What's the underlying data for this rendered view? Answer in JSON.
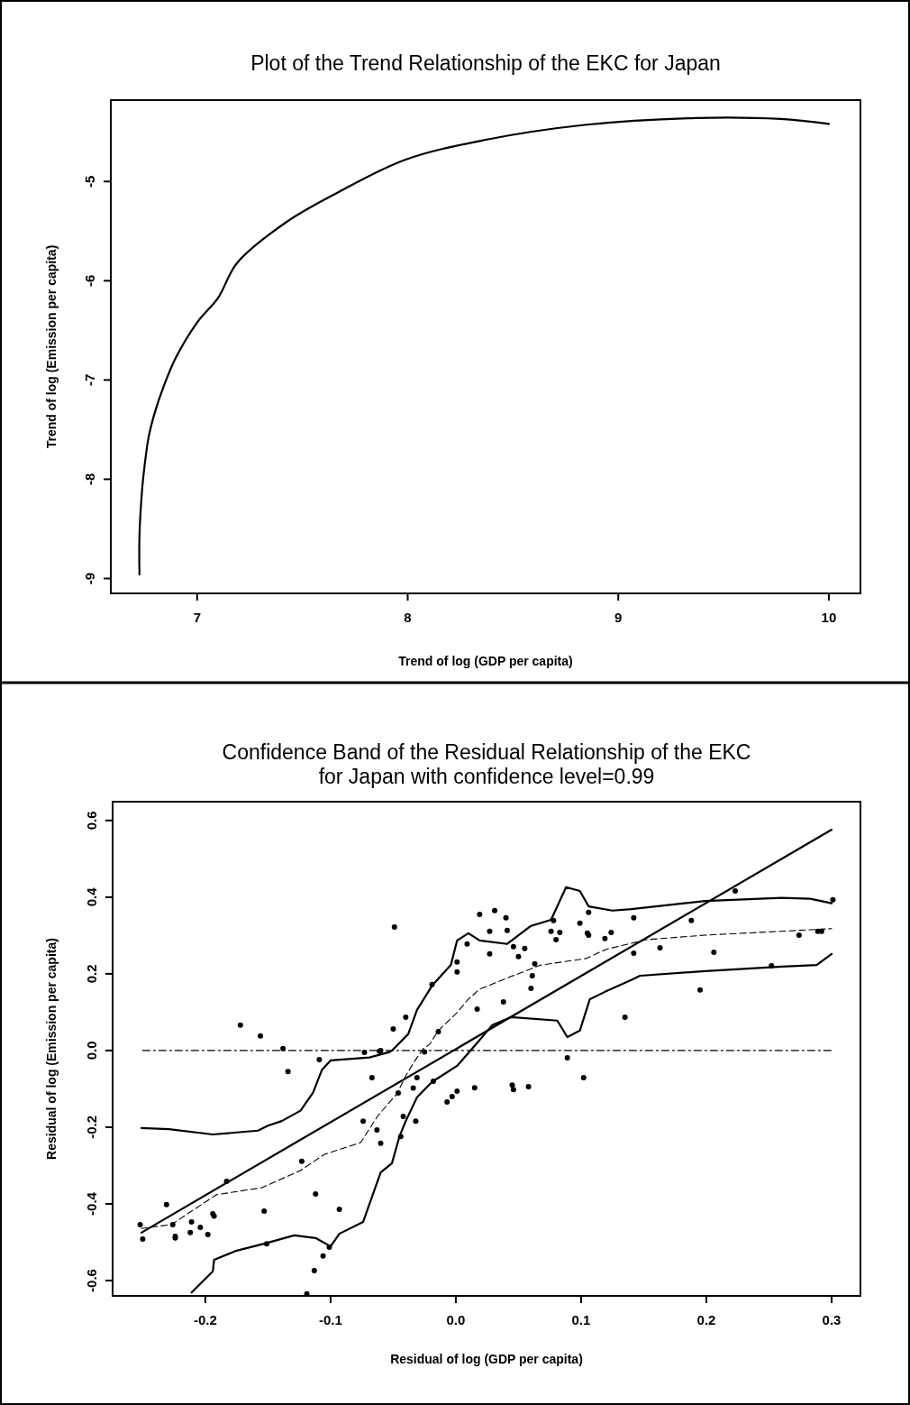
{
  "chart_data": [
    {
      "type": "line",
      "title": "Plot of the Trend Relationship of the EKC for Japan",
      "xlabel": "Trend of log (GDP per capita)",
      "ylabel": "Trend of log (Emission per capita)",
      "xlim": [
        6.59,
        10.15
      ],
      "ylim": [
        -9.15,
        -4.18
      ],
      "xticks": [
        7,
        8,
        9,
        10
      ],
      "yticks": [
        -9,
        -8,
        -7,
        -6,
        -5
      ],
      "series": [
        {
          "color": "#000000",
          "x": [
            6.726,
            6.726,
            6.74,
            6.75,
            6.77,
            6.8,
            6.84,
            6.9,
            7.0,
            7.1,
            7.19,
            7.43,
            7.66,
            7.99,
            8.37,
            8.84,
            9.37,
            9.77,
            10.0
          ],
          "values": [
            -8.96,
            -8.57,
            -8.07,
            -7.87,
            -7.57,
            -7.32,
            -7.07,
            -6.77,
            -6.42,
            -6.17,
            -5.82,
            -5.4,
            -5.12,
            -4.78,
            -4.58,
            -4.43,
            -4.36,
            -4.37,
            -4.42
          ]
        }
      ]
    },
    {
      "type": "scatter",
      "title": "Confidence Band of the Residual Relationship of the EKC for Japan with confidence level=0.99",
      "xlabel": "Residual of log (GDP per capita)",
      "ylabel": "Residual of log (Emission per capita)",
      "xlim": [
        -0.274,
        0.323
      ],
      "ylim": [
        -0.64,
        0.649
      ],
      "xticks": [
        {
          "value": -0.2,
          "label": "-0.2"
        },
        {
          "value": -0.1,
          "label": "-0.1"
        },
        {
          "value": 0,
          "label": "0.0"
        },
        {
          "value": 0.1,
          "label": "0.1"
        },
        {
          "value": 0.2,
          "label": "0.2"
        },
        {
          "value": 0.3,
          "label": "0.3"
        }
      ],
      "yticks": [
        {
          "value": -0.6,
          "label": "-0.6"
        },
        {
          "value": -0.4,
          "label": "-0.4"
        },
        {
          "value": -0.2,
          "label": "-0.2"
        },
        {
          "value": 0,
          "label": "0.0"
        },
        {
          "value": 0.2,
          "label": "0.2"
        },
        {
          "value": 0.4,
          "label": "0.4"
        },
        {
          "value": 0.6,
          "label": "0.6"
        }
      ],
      "series": [
        {
          "marker": "circle",
          "color": "#000000",
          "x": [
            -0.172,
            -0.156,
            -0.138,
            -0.049,
            -0.05,
            -0.04,
            -0.019,
            0.001,
            0.009,
            -0.014,
            0.001,
            -0.073,
            -0.061,
            -0.109,
            -0.134,
            -0.06,
            -0.025,
            -0.067,
            -0.031,
            -0.034,
            -0.018,
            -0.046,
            -0.007,
            -0.003,
            0.001,
            0.015,
            -0.074,
            -0.042,
            -0.032,
            -0.063,
            -0.06,
            -0.044,
            -0.123,
            -0.183,
            -0.112,
            -0.093,
            -0.153,
            -0.231,
            -0.194,
            -0.193,
            -0.252,
            -0.25,
            -0.226,
            -0.224,
            -0.224,
            -0.211,
            -0.204,
            -0.212,
            -0.198,
            -0.151,
            -0.101,
            -0.106,
            -0.113,
            -0.119,
            0.045,
            0.046,
            0.058,
            0.089,
            0.102,
            0.019,
            0.031,
            0.04,
            0.027,
            0.041,
            0.046,
            0.055,
            0.027,
            0.05,
            0.063,
            0.078,
            0.076,
            0.083,
            0.08,
            0.099,
            0.105,
            0.106,
            0.119,
            0.124,
            0.106,
            0.142,
            0.142,
            0.163,
            0.188,
            0.206,
            0.223,
            0.274,
            0.289,
            0.292,
            0.301,
            0.252,
            0.195,
            0.135,
            0.06,
            0.038,
            0.017,
            0.061
          ],
          "values": [
            0.066,
            0.038,
            0.005,
            0.322,
            0.056,
            0.087,
            0.172,
            0.205,
            0.278,
            0.049,
            0.231,
            -0.005,
            -0.002,
            -0.024,
            -0.055,
            0.0,
            -0.004,
            -0.071,
            -0.071,
            -0.098,
            -0.08,
            -0.111,
            -0.134,
            -0.12,
            -0.106,
            -0.097,
            -0.184,
            -0.172,
            -0.184,
            -0.207,
            -0.242,
            -0.224,
            -0.289,
            -0.341,
            -0.374,
            -0.414,
            -0.419,
            -0.402,
            -0.426,
            -0.432,
            -0.454,
            -0.492,
            -0.454,
            -0.485,
            -0.489,
            -0.447,
            -0.461,
            -0.475,
            -0.48,
            -0.504,
            -0.513,
            -0.536,
            -0.574,
            -0.635,
            -0.09,
            -0.102,
            -0.094,
            -0.019,
            -0.071,
            0.355,
            0.365,
            0.346,
            0.311,
            0.313,
            0.271,
            0.266,
            0.252,
            0.245,
            0.226,
            0.339,
            0.311,
            0.308,
            0.289,
            0.332,
            0.306,
            0.301,
            0.292,
            0.308,
            0.36,
            0.346,
            0.254,
            0.268,
            0.339,
            0.256,
            0.416,
            0.301,
            0.311,
            0.311,
            0.393,
            0.221,
            0.158,
            0.087,
            0.162,
            0.127,
            0.108,
            0.195
          ]
        },
        {
          "type": "line",
          "line_style": "solid",
          "color": "#000000",
          "x": [
            -0.251,
            0.3
          ],
          "values": [
            -0.475,
            0.576
          ]
        },
        {
          "type": "line",
          "line_style": "dashdot",
          "color": "#000000",
          "x": [
            -0.25,
            0.3
          ],
          "values": [
            0,
            0
          ]
        },
        {
          "type": "line",
          "line_style": "solid",
          "color": "#000000",
          "x": [
            -0.251,
            -0.229,
            -0.194,
            -0.158,
            -0.15,
            -0.139,
            -0.124,
            -0.114,
            -0.107,
            -0.1,
            -0.069,
            -0.053,
            -0.051,
            -0.038,
            -0.031,
            -0.019,
            -0.004,
            0.001,
            0.01,
            0.019,
            0.041,
            0.06,
            0.076,
            0.08,
            0.088,
            0.099,
            0.106,
            0.125,
            0.14,
            0.199,
            0.26,
            0.283,
            0.3
          ],
          "values": [
            -0.202,
            -0.205,
            -0.219,
            -0.209,
            -0.196,
            -0.184,
            -0.157,
            -0.11,
            -0.051,
            -0.026,
            -0.018,
            -0.004,
            0.0,
            0.043,
            0.106,
            0.169,
            0.223,
            0.287,
            0.306,
            0.287,
            0.278,
            0.325,
            0.341,
            0.369,
            0.426,
            0.416,
            0.376,
            0.365,
            0.369,
            0.39,
            0.398,
            0.396,
            0.384
          ]
        },
        {
          "type": "line",
          "line_style": "solid",
          "color": "#000000",
          "x": [
            -0.211,
            -0.194,
            -0.193,
            -0.175,
            -0.153,
            -0.129,
            -0.112,
            -0.1,
            -0.093,
            -0.074,
            -0.071,
            -0.06,
            -0.051,
            -0.045,
            -0.04,
            -0.031,
            -0.019,
            0.001,
            0.017,
            0.029,
            0.044,
            0.081,
            0.089,
            0.099,
            0.107,
            0.119,
            0.14,
            0.147,
            0.199,
            0.26,
            0.288,
            0.3
          ],
          "values": [
            -0.631,
            -0.576,
            -0.546,
            -0.522,
            -0.504,
            -0.482,
            -0.489,
            -0.511,
            -0.478,
            -0.447,
            -0.419,
            -0.318,
            -0.294,
            -0.224,
            -0.184,
            -0.122,
            -0.082,
            -0.04,
            0.02,
            0.066,
            0.087,
            0.078,
            0.035,
            0.052,
            0.134,
            0.153,
            0.184,
            0.195,
            0.207,
            0.219,
            0.223,
            0.252
          ]
        },
        {
          "type": "line",
          "line_style": "dashed",
          "color": "#000000",
          "x": [
            -0.251,
            -0.227,
            -0.211,
            -0.191,
            -0.155,
            -0.124,
            -0.105,
            -0.076,
            -0.062,
            -0.047,
            -0.04,
            -0.033,
            -0.026,
            -0.021,
            -0.014,
            0.001,
            0.01,
            0.019,
            0.044,
            0.068,
            0.104,
            0.12,
            0.152,
            0.199,
            0.26,
            0.3
          ],
          "values": [
            -0.464,
            -0.454,
            -0.419,
            -0.376,
            -0.358,
            -0.313,
            -0.271,
            -0.24,
            -0.169,
            -0.113,
            -0.066,
            -0.028,
            0.005,
            0.016,
            0.052,
            0.099,
            0.134,
            0.16,
            0.193,
            0.223,
            0.24,
            0.264,
            0.289,
            0.301,
            0.311,
            0.318
          ]
        }
      ]
    }
  ]
}
